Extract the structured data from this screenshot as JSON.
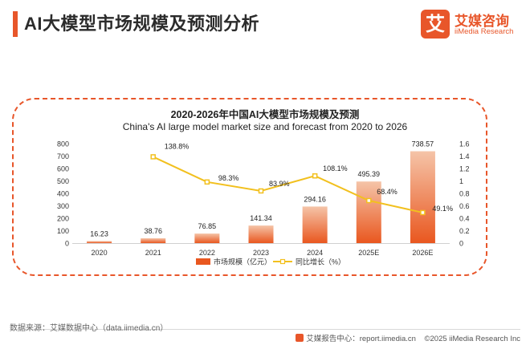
{
  "page": {
    "title": "AI大模型市场规模及预测分析",
    "logo_cn": "艾媒咨询",
    "logo_en": "iiMedia Research",
    "logo_mark": "艾",
    "source": "数据来源：艾媒数据中心（data.iimedia.cn）",
    "footer_site": "艾媒报告中心：report.iimedia.cn",
    "footer_copyright": "©2025  iiMedia Research  Inc"
  },
  "colors": {
    "accent": "#e8562a",
    "bar_top": "#f5c4a8",
    "bar_bottom": "#e9571f",
    "line": "#f2c01e"
  },
  "chart_data": {
    "type": "bar",
    "title": "2020-2026年中国AI大模型市场规模及预测",
    "subtitle": "China's AI large model market size and forecast from 2020 to 2026",
    "categories": [
      "2020",
      "2021",
      "2022",
      "2023",
      "2024",
      "2025E",
      "2026E"
    ],
    "series": [
      {
        "name": "市场规模（亿元）",
        "type": "bar",
        "axis": "left",
        "values": [
          16.23,
          38.76,
          76.85,
          141.34,
          294.16,
          495.39,
          738.57
        ],
        "labels": [
          "16.23",
          "38.76",
          "76.85",
          "141.34",
          "294.16",
          "495.39",
          "738.57"
        ]
      },
      {
        "name": "同比增长（%）",
        "type": "line",
        "axis": "right",
        "values": [
          null,
          1.388,
          0.983,
          0.839,
          1.081,
          0.684,
          0.491
        ],
        "labels": [
          "",
          "138.8%",
          "98.3%",
          "83.9%",
          "108.1%",
          "68.4%",
          "49.1%"
        ]
      }
    ],
    "ylim_left": [
      0,
      800
    ],
    "yticks_left": [
      "0",
      "100",
      "200",
      "300",
      "400",
      "500",
      "600",
      "700",
      "800"
    ],
    "ylim_right": [
      0,
      1.6
    ],
    "yticks_right": [
      "0",
      "0.2",
      "0.4",
      "0.6",
      "0.8",
      "1",
      "1.2",
      "1.4",
      "1.6"
    ],
    "grid": false,
    "legend_position": "bottom-center"
  }
}
